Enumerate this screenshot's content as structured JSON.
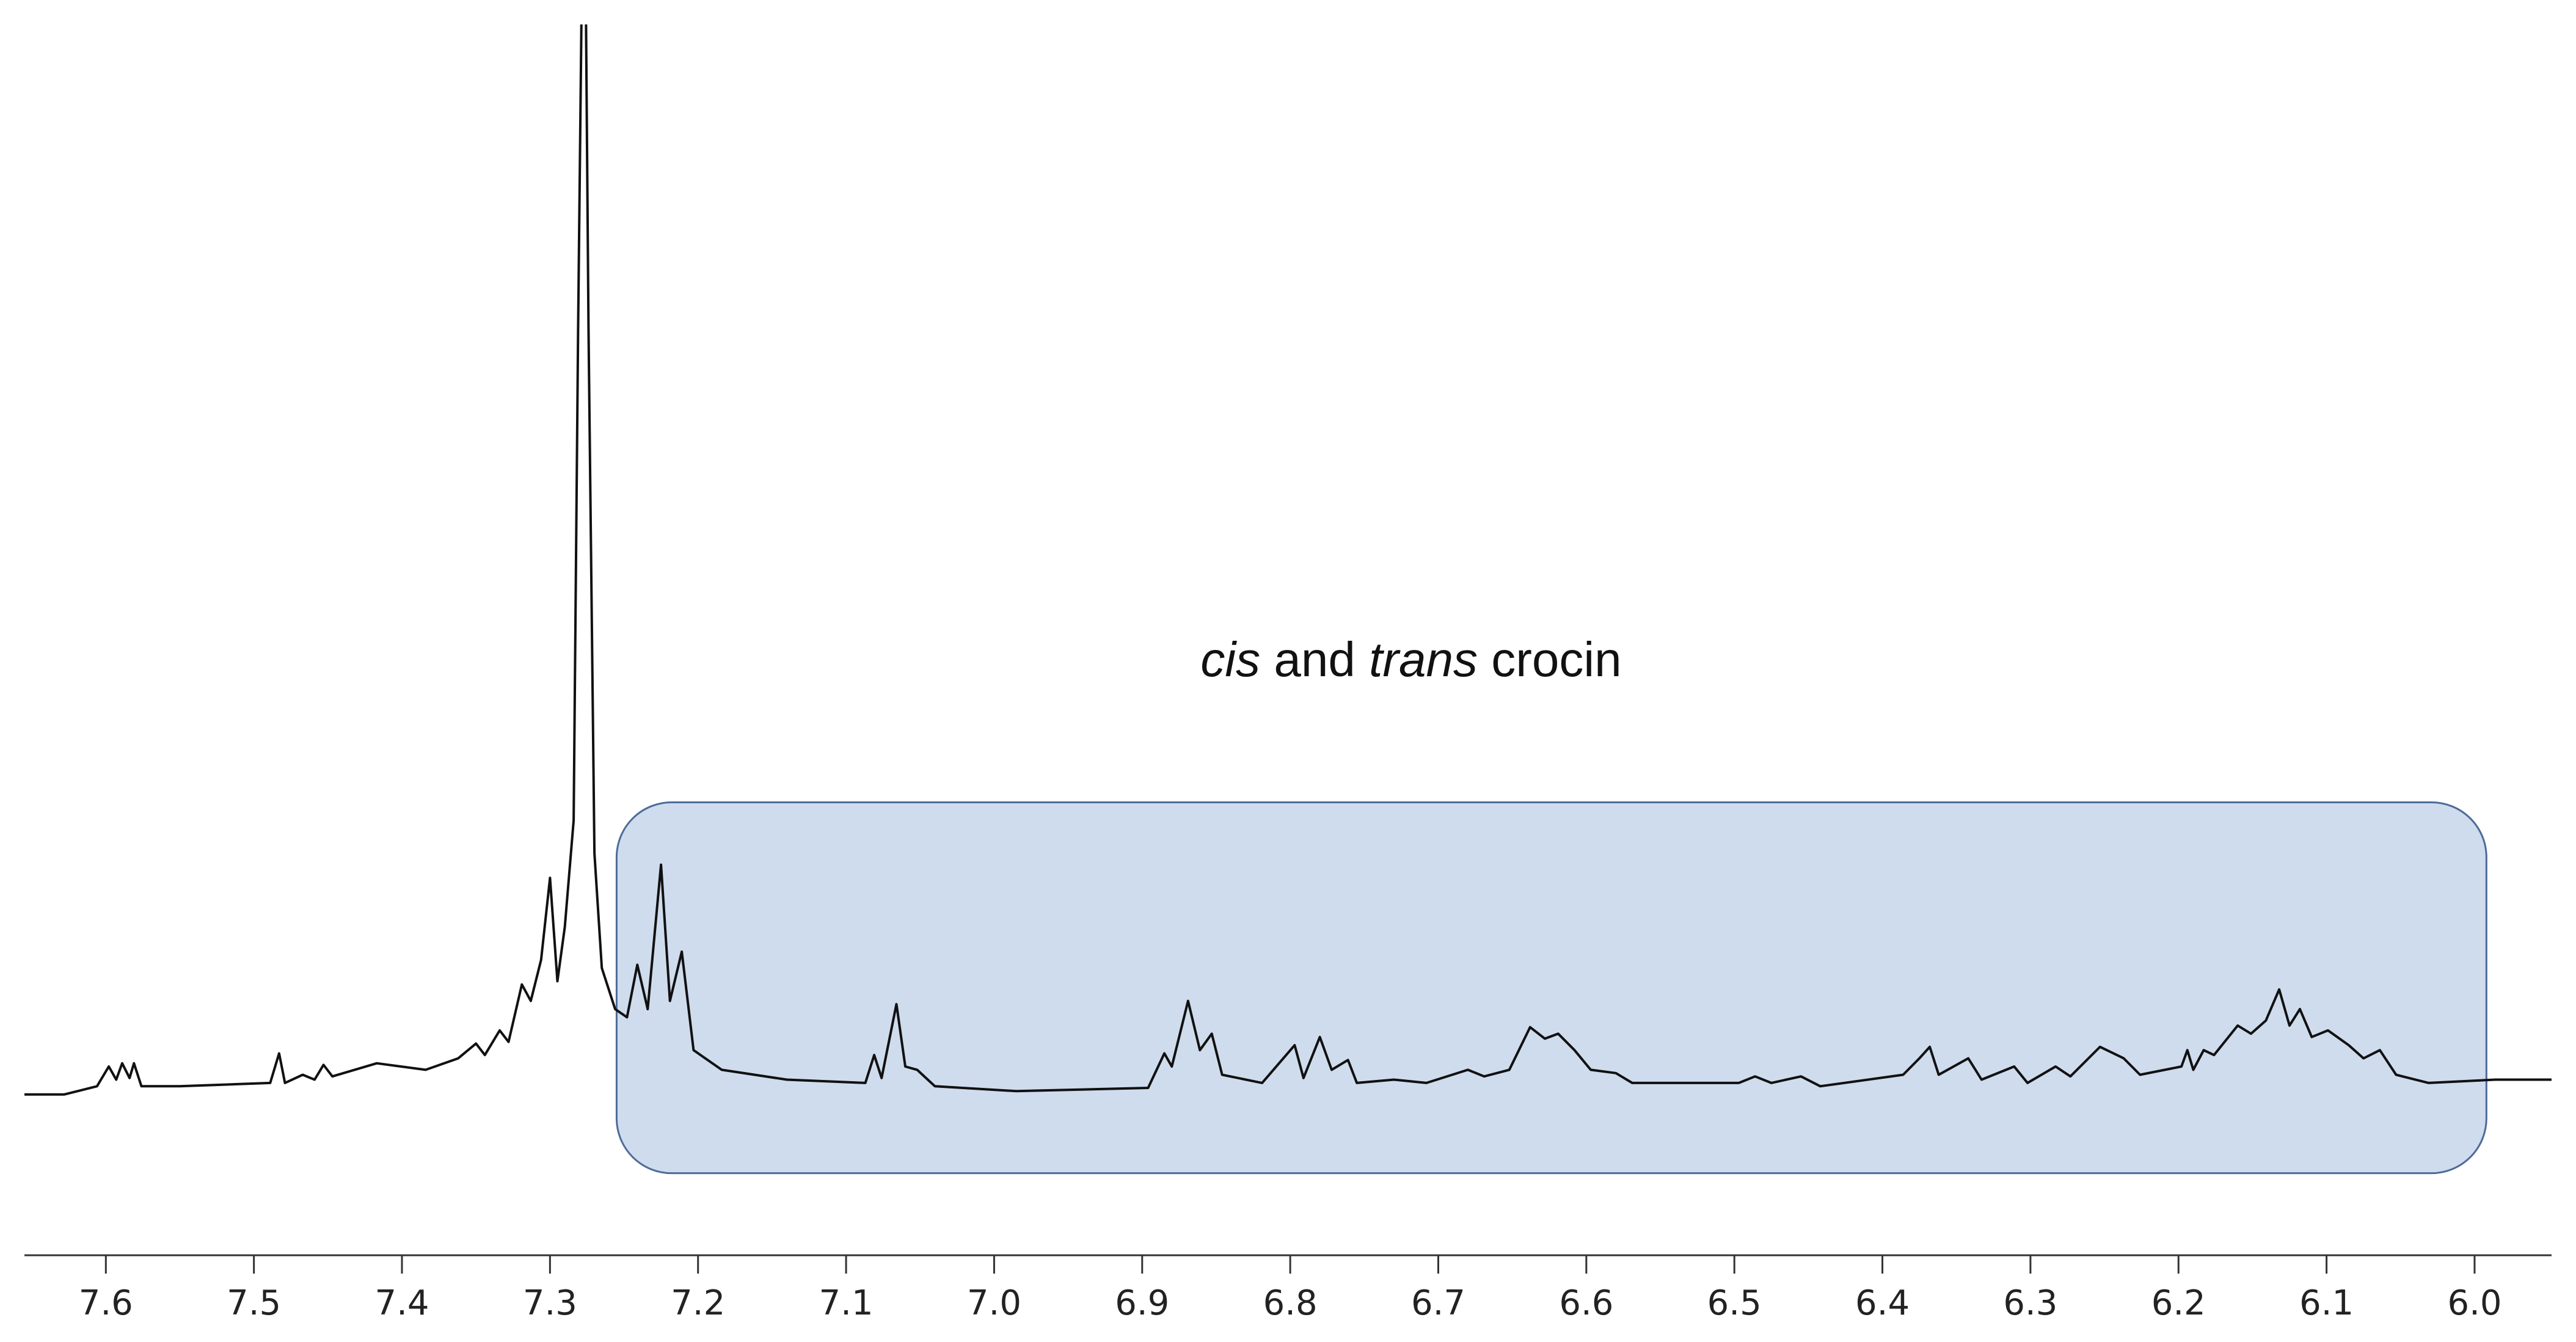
{
  "chart_data": {
    "type": "line",
    "annotation": [
      "cis",
      " and ",
      "trans",
      " crocin"
    ],
    "x": [
      7.655,
      7.628,
      7.606,
      7.598,
      7.593,
      7.589,
      7.584,
      7.581,
      7.576,
      7.55,
      7.489,
      7.483,
      7.479,
      7.467,
      7.459,
      7.453,
      7.447,
      7.417,
      7.384,
      7.362,
      7.35,
      7.344,
      7.334,
      7.328,
      7.319,
      7.313,
      7.306,
      7.3,
      7.295,
      7.29,
      7.284,
      7.281,
      7.277,
      7.274,
      7.27,
      7.265,
      7.256,
      7.248,
      7.241,
      7.234,
      7.225,
      7.219,
      7.211,
      7.203,
      7.184,
      7.14,
      7.087,
      7.081,
      7.076,
      7.066,
      7.06,
      7.052,
      7.04,
      6.985,
      6.896,
      6.885,
      6.88,
      6.869,
      6.861,
      6.853,
      6.846,
      6.819,
      6.797,
      6.791,
      6.78,
      6.772,
      6.761,
      6.755,
      6.73,
      6.708,
      6.68,
      6.669,
      6.652,
      6.638,
      6.628,
      6.619,
      6.608,
      6.597,
      6.58,
      6.569,
      6.497,
      6.486,
      6.475,
      6.455,
      6.442,
      6.386,
      6.375,
      6.368,
      6.362,
      6.342,
      6.333,
      6.311,
      6.302,
      6.283,
      6.273,
      6.253,
      6.237,
      6.226,
      6.198,
      6.194,
      6.19,
      6.183,
      6.176,
      6.16,
      6.151,
      6.141,
      6.132,
      6.125,
      6.118,
      6.11,
      6.099,
      6.085,
      6.075,
      6.064,
      6.053,
      6.031,
      5.986,
      5.948
    ],
    "series": [
      {
        "color": "#111111",
        "values": [
          -2,
          -2,
          3,
          15,
          7,
          17,
          8,
          17,
          3,
          3,
          5,
          23,
          5,
          10,
          7,
          16,
          9,
          17,
          13,
          20,
          29,
          22,
          37,
          30,
          65,
          55,
          80,
          130,
          67,
          100,
          165,
          465,
          800,
          465,
          145,
          75,
          50,
          45,
          77,
          50,
          138,
          55,
          85,
          25,
          13,
          7,
          5,
          22,
          8,
          53,
          15,
          13,
          3,
          0,
          2,
          23,
          15,
          55,
          25,
          35,
          10,
          5,
          28,
          8,
          33,
          13,
          19,
          5,
          7,
          5,
          13,
          9,
          13,
          39,
          32,
          35,
          25,
          13,
          11,
          5,
          5,
          9,
          5,
          9,
          3,
          10,
          20,
          27,
          10,
          20,
          7,
          15,
          5,
          15,
          9,
          27,
          20,
          10,
          15,
          25,
          13,
          25,
          22,
          40,
          35,
          43,
          62,
          40,
          50,
          33,
          37,
          28,
          20,
          25,
          10,
          5,
          7,
          7
        ]
      }
    ],
    "highlight": {
      "x": [
        7.255,
        5.992
      ],
      "y": [
        176,
        -50
      ],
      "color": "#cfdcee"
    },
    "xlim": [
      7.655,
      5.948
    ],
    "ylim": [
      -100,
      650
    ],
    "xticks": [
      {
        "value": 7.6,
        "label": "7.6"
      },
      {
        "value": 7.5,
        "label": "7.5"
      },
      {
        "value": 7.4,
        "label": "7.4"
      },
      {
        "value": 7.3,
        "label": "7.3"
      },
      {
        "value": 7.2,
        "label": "7.2"
      },
      {
        "value": 7.1,
        "label": "7.1"
      },
      {
        "value": 7.0,
        "label": "7.0"
      },
      {
        "value": 6.9,
        "label": "6.9"
      },
      {
        "value": 6.8,
        "label": "6.8"
      },
      {
        "value": 6.7,
        "label": "6.7"
      },
      {
        "value": 6.6,
        "label": "6.6"
      },
      {
        "value": 6.5,
        "label": "6.5"
      },
      {
        "value": 6.4,
        "label": "6.4"
      },
      {
        "value": 6.3,
        "label": "6.3"
      },
      {
        "value": 6.2,
        "label": "6.2"
      },
      {
        "value": 6.1,
        "label": "6.1"
      },
      {
        "value": 6.0,
        "label": "6.0"
      }
    ]
  }
}
